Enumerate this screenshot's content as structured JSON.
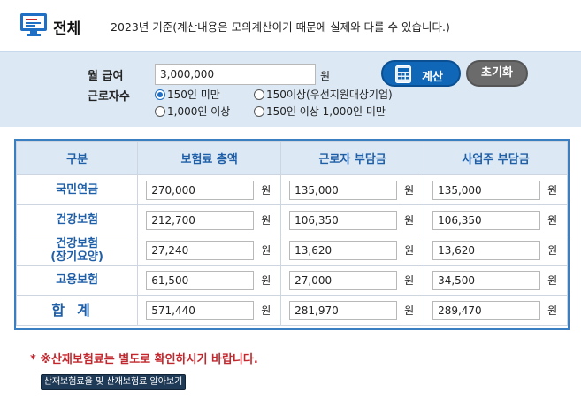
{
  "header": {
    "title": "전체",
    "note": "2023년 기준(계산내용은 모의계산이기 때문에 실제와 다를 수 있습니다.)"
  },
  "form": {
    "salary_label": "월 급여",
    "salary_value": "3,000,000",
    "won": "원",
    "calc_button": "계산",
    "reset_button": "초기화",
    "workers_label": "근로자수",
    "workers_options": [
      "150인 미만",
      "150이상(우선지원대상기업)",
      "1,000인 이상",
      "150인 이상 1,000인 미만"
    ],
    "workers_selected": "150인 미만"
  },
  "table": {
    "headers": [
      "구분",
      "보험료 총액",
      "근로자 부담금",
      "사업주 부담금"
    ],
    "unit": "원",
    "rows": [
      {
        "name": "국민연금",
        "total": "270,000",
        "employee": "135,000",
        "employer": "135,000"
      },
      {
        "name": "건강보험",
        "total": "212,700",
        "employee": "106,350",
        "employer": "106,350"
      },
      {
        "name": "건강보험",
        "name2": "(장기요양)",
        "total": "27,240",
        "employee": "13,620",
        "employer": "13,620"
      },
      {
        "name": "고용보험",
        "total": "61,500",
        "employee": "27,000",
        "employer": "34,500"
      },
      {
        "name": "합계",
        "total": "571,440",
        "employee": "281,970",
        "employer": "289,470"
      }
    ]
  },
  "notice": "* ※산재보험료는 별도로 확인하시기 바랍니다.",
  "link_button": "산재보험료율 및 산재보험료 알아보기",
  "colors": {
    "accent": "#1167b7",
    "header_blue": "#1f5fa8",
    "panel_bg": "#dce9f5",
    "notice_red": "#c1272d"
  },
  "icons": [
    "monitor-icon",
    "calculator-icon"
  ]
}
